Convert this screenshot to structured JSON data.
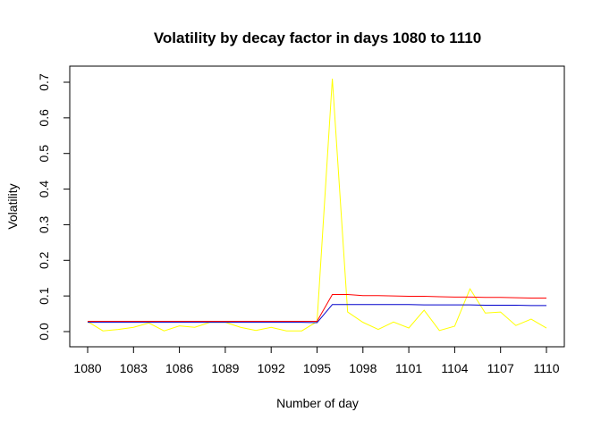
{
  "chart_data": {
    "type": "line",
    "title": "Volatility by decay factor in days 1080 to 1110",
    "xlabel": "Number of day",
    "ylabel": "Volatility",
    "xlim": [
      1080,
      1110
    ],
    "ylim": [
      0,
      0.7
    ],
    "x_ticks": [
      1080,
      1083,
      1086,
      1089,
      1092,
      1095,
      1098,
      1101,
      1104,
      1107,
      1110
    ],
    "y_ticks": [
      0.0,
      0.1,
      0.2,
      0.3,
      0.4,
      0.5,
      0.6,
      0.7
    ],
    "y_tick_labels": [
      "0.0",
      "0.1",
      "0.2",
      "0.3",
      "0.4",
      "0.5",
      "0.6",
      "0.7"
    ],
    "grid": false,
    "legend": "none",
    "x": [
      1080,
      1081,
      1082,
      1083,
      1084,
      1085,
      1086,
      1087,
      1088,
      1089,
      1090,
      1091,
      1092,
      1093,
      1094,
      1095,
      1096,
      1097,
      1098,
      1099,
      1100,
      1101,
      1102,
      1103,
      1104,
      1105,
      1106,
      1107,
      1108,
      1109,
      1110
    ],
    "series": [
      {
        "color": "#FFFF00",
        "values": [
          0.028,
          0.002,
          0.006,
          0.012,
          0.024,
          0.002,
          0.016,
          0.012,
          0.026,
          0.026,
          0.012,
          0.003,
          0.012,
          0.002,
          0.002,
          0.028,
          0.71,
          0.055,
          0.026,
          0.006,
          0.027,
          0.01,
          0.06,
          0.003,
          0.015,
          0.12,
          0.052,
          0.055,
          0.017,
          0.035,
          0.01
        ]
      },
      {
        "color": "#FF0000",
        "values": [
          0.029,
          0.029,
          0.029,
          0.029,
          0.029,
          0.029,
          0.029,
          0.029,
          0.029,
          0.029,
          0.029,
          0.029,
          0.029,
          0.029,
          0.029,
          0.029,
          0.104,
          0.104,
          0.101,
          0.101,
          0.1,
          0.099,
          0.099,
          0.098,
          0.097,
          0.097,
          0.096,
          0.096,
          0.095,
          0.094,
          0.094
        ]
      },
      {
        "color": "#0000CC",
        "values": [
          0.026,
          0.026,
          0.026,
          0.026,
          0.026,
          0.026,
          0.026,
          0.026,
          0.026,
          0.026,
          0.026,
          0.026,
          0.026,
          0.026,
          0.026,
          0.025,
          0.076,
          0.076,
          0.076,
          0.076,
          0.076,
          0.076,
          0.075,
          0.075,
          0.075,
          0.075,
          0.074,
          0.074,
          0.074,
          0.073,
          0.073
        ]
      }
    ]
  }
}
